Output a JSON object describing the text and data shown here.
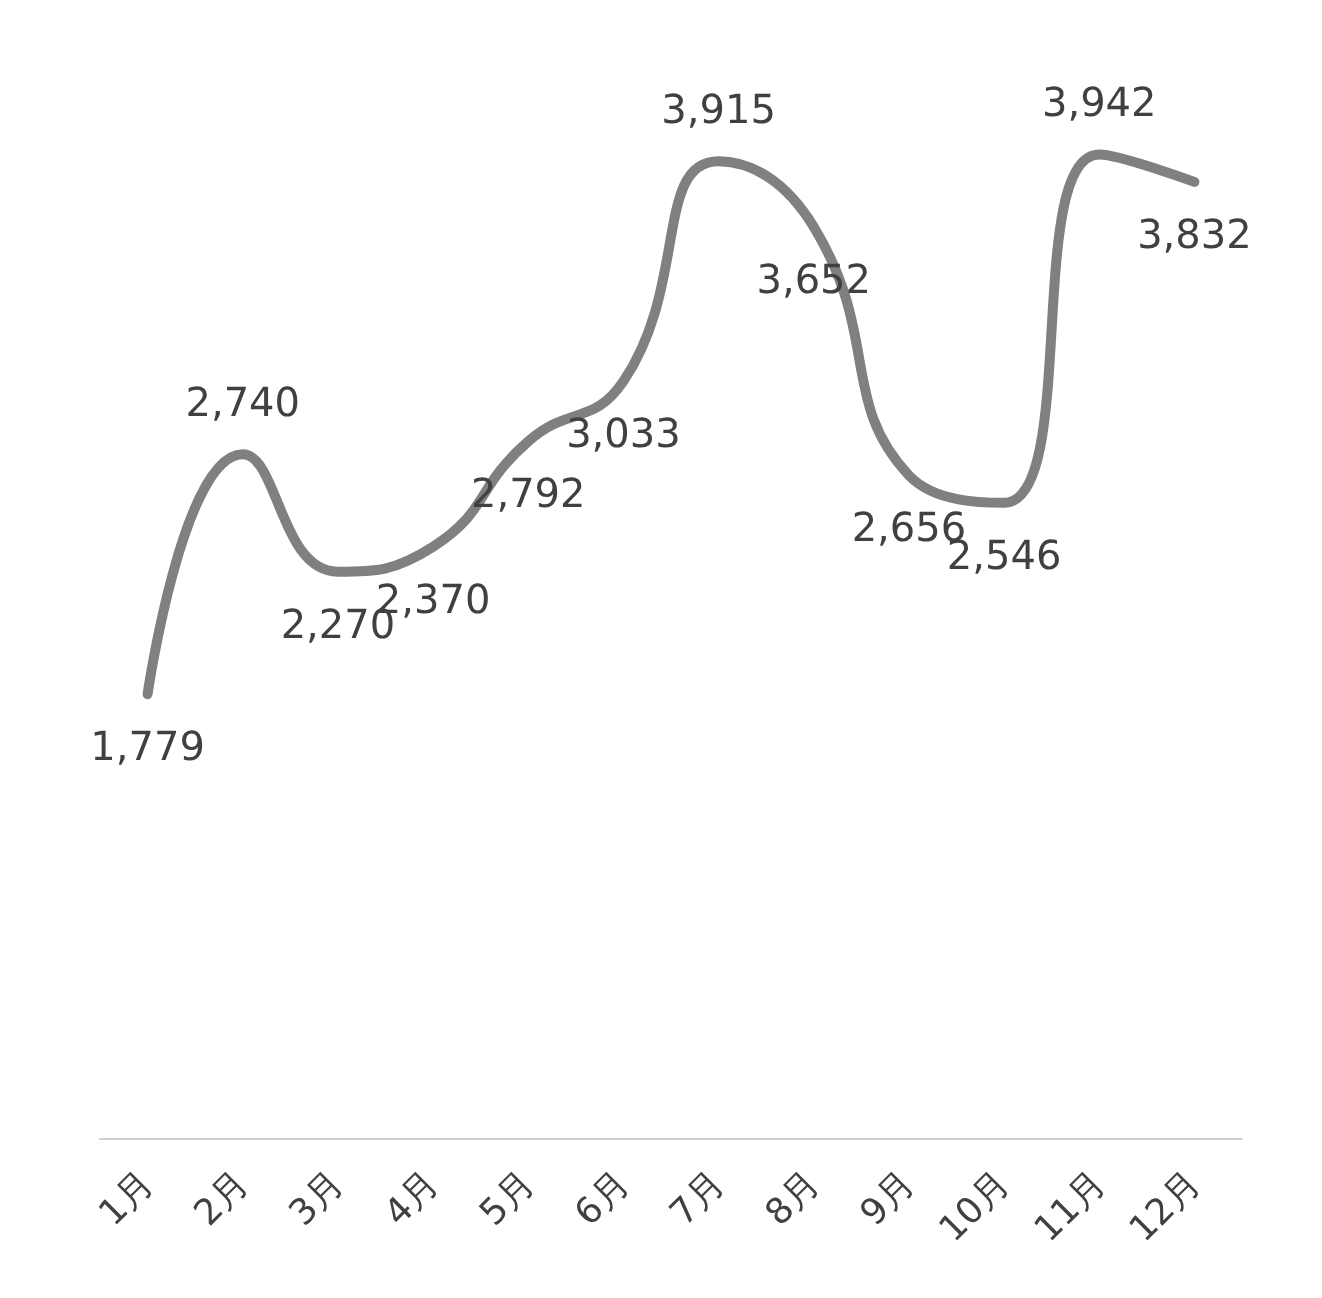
{
  "chart_data": {
    "type": "line",
    "categories": [
      "1月",
      "2月",
      "3月",
      "4月",
      "5月",
      "6月",
      "7月",
      "8月",
      "9月",
      "10月",
      "11月",
      "12月"
    ],
    "series": [
      {
        "color": "#808080",
        "values": [
          1779,
          2740,
          2270,
          2370,
          2792,
          3033,
          3915,
          3652,
          2656,
          2546,
          3942,
          3832
        ],
        "value_labels": [
          "1,779",
          "2,740",
          "2,270",
          "2,370",
          "2,792",
          "3,033",
          "3,915",
          "3,652",
          "2,656",
          "2,546",
          "3,942",
          "3,832"
        ]
      }
    ],
    "grid": false,
    "marker": "none",
    "line_style": "solid"
  }
}
